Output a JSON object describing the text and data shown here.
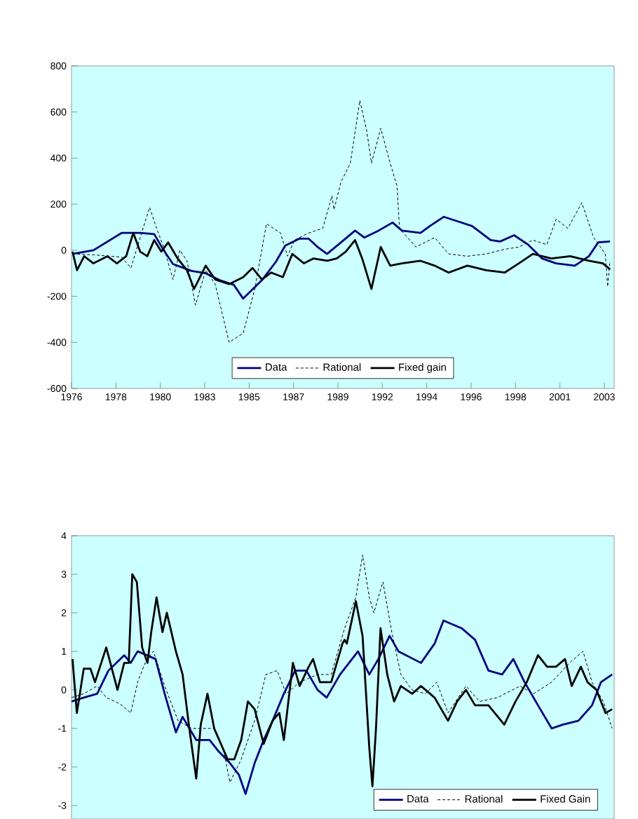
{
  "chart_data": [
    {
      "type": "line",
      "xlim": [
        1976,
        2003.5
      ],
      "ylim": [
        -600,
        800
      ],
      "yticks": [
        -600,
        -400,
        -200,
        0,
        200,
        400,
        600,
        800
      ],
      "xticks": [
        {
          "value": 1976,
          "label": "1976"
        },
        {
          "value": 1978.25,
          "label": "1978"
        },
        {
          "value": 1980.5,
          "label": "1980"
        },
        {
          "value": 1982.75,
          "label": "1983"
        },
        {
          "value": 1985,
          "label": "1985"
        },
        {
          "value": 1987.25,
          "label": "1987"
        },
        {
          "value": 1989.5,
          "label": "1989"
        },
        {
          "value": 1991.75,
          "label": "1992"
        },
        {
          "value": 1994,
          "label": "1994"
        },
        {
          "value": 1996.25,
          "label": "1996"
        },
        {
          "value": 1998.5,
          "label": "1998"
        },
        {
          "value": 2000.75,
          "label": "2001"
        },
        {
          "value": 2003,
          "label": "2003"
        }
      ],
      "legend": "bottom",
      "series": [
        {
          "name": "Data",
          "color": "#000080",
          "line_style": "solid",
          "x": [
            1976.05,
            1977.11,
            1978.54,
            1979.48,
            1980.19,
            1980.67,
            1981.14,
            1982.09,
            1982.8,
            1983.51,
            1984.22,
            1984.7,
            1985.65,
            1986.36,
            1986.83,
            1987.54,
            1988.02,
            1988.47,
            1988.95,
            1989.66,
            1990.37,
            1990.84,
            1991.56,
            1992.27,
            1992.74,
            1993.69,
            1994.16,
            1994.87,
            1995.58,
            1996.3,
            1997.24,
            1997.72,
            1998.43,
            1999.14,
            1999.85,
            2000.56,
            2001.51,
            2002.22,
            2002.69,
            2003.29
          ],
          "values": [
            -16,
            0,
            75,
            75,
            70,
            0,
            -60,
            -90,
            -100,
            -130,
            -150,
            -210,
            -130,
            -50,
            20,
            50,
            50,
            14,
            -16,
            34,
            85,
            55,
            85,
            120,
            85,
            75,
            105,
            145,
            125,
            105,
            44,
            38,
            65,
            24,
            -36,
            -57,
            -67,
            -26,
            34,
            38
          ]
        },
        {
          "name": "Rational",
          "color": "#000000",
          "line_style": "dashed",
          "x": [
            1976.05,
            1977.11,
            1978.54,
            1979.01,
            1979.48,
            1979.96,
            1980.31,
            1980.67,
            1981.14,
            1981.5,
            1981.85,
            1982.28,
            1982.8,
            1983.28,
            1983.99,
            1984.7,
            1985.29,
            1985.88,
            1986.59,
            1986.95,
            1987.3,
            1988.02,
            1988.73,
            1989.2,
            1989.3,
            1989.66,
            1990.13,
            1990.61,
            1990.96,
            1991.2,
            1991.67,
            1992.15,
            1992.5,
            1992.62,
            1993.45,
            1994.4,
            1995.11,
            1996.06,
            1997.01,
            1997.95,
            1998.67,
            1999.38,
            2000.09,
            2000.56,
            2001.15,
            2001.86,
            2002.46,
            2003.05,
            2003.17,
            2003.29
          ],
          "values": [
            -16,
            -20,
            -30,
            -77,
            55,
            186,
            95,
            14,
            -127,
            0,
            -46,
            -238,
            -87,
            -147,
            -400,
            -360,
            -168,
            115,
            75,
            -26,
            44,
            75,
            95,
            236,
            176,
            297,
            378,
            650,
            519,
            378,
            529,
            378,
            277,
            95,
            14,
            55,
            -16,
            -26,
            -16,
            4,
            14,
            44,
            24,
            135,
            95,
            206,
            55,
            -16,
            -158,
            -46
          ]
        },
        {
          "name": "Fixed gain",
          "color": "#000000",
          "line_style": "solid",
          "x": [
            1976.05,
            1976.28,
            1976.64,
            1977.11,
            1977.82,
            1978.3,
            1978.77,
            1979.13,
            1979.48,
            1979.84,
            1980.19,
            1980.55,
            1980.9,
            1981.38,
            1981.85,
            1982.21,
            1982.8,
            1983.28,
            1983.99,
            1984.7,
            1985.17,
            1985.65,
            1986.12,
            1986.71,
            1987.19,
            1987.78,
            1988.25,
            1988.96,
            1989.44,
            1989.9,
            1990.37,
            1990.73,
            1991.2,
            1991.67,
            1992.15,
            1992.74,
            1993.69,
            1994.4,
            1995.11,
            1996.06,
            1997.01,
            1997.95,
            1998.67,
            1999.38,
            2000.32,
            2001.27,
            2002.22,
            2002.93,
            2003.29
          ],
          "values": [
            -6,
            -87,
            -26,
            -57,
            -26,
            -57,
            -26,
            75,
            -6,
            -26,
            44,
            -6,
            34,
            -36,
            -87,
            -168,
            -67,
            -127,
            -147,
            -117,
            -77,
            -127,
            -97,
            -117,
            -16,
            -57,
            -36,
            -46,
            -36,
            -6,
            44,
            -36,
            -168,
            14,
            -67,
            -57,
            -46,
            -67,
            -97,
            -67,
            -87,
            -97,
            -57,
            -16,
            -36,
            -26,
            -46,
            -57,
            -83
          ]
        }
      ]
    },
    {
      "type": "line",
      "xlim": [
        1976,
        2003.5
      ],
      "ylim": [
        -3.35,
        4
      ],
      "yticks": [
        -3,
        -2,
        -1,
        0,
        1,
        2,
        3,
        4
      ],
      "tick_labels": "y",
      "legend": "bottom right",
      "series": [
        {
          "name": "Data",
          "color": "#000080",
          "line_style": "solid",
          "x": [
            1976.0,
            1976.62,
            1977.3,
            1977.87,
            1978.67,
            1979.0,
            1979.35,
            1979.81,
            1980.26,
            1980.72,
            1981.29,
            1981.63,
            1982.32,
            1983.0,
            1983.46,
            1984.03,
            1984.48,
            1984.82,
            1985.28,
            1985.74,
            1986.19,
            1986.76,
            1987.33,
            1987.9,
            1988.47,
            1988.93,
            1989.61,
            1990.52,
            1991.09,
            1991.55,
            1992.12,
            1992.57,
            1993.71,
            1994.4,
            1994.85,
            1995.77,
            1996.45,
            1997.13,
            1997.82,
            1998.39,
            1998.96,
            1999.64,
            2000.33,
            2000.9,
            2001.69,
            2002.38,
            2002.83,
            2003.4
          ],
          "values": [
            -0.3,
            -0.2,
            -0.1,
            0.5,
            0.9,
            0.7,
            1.0,
            0.9,
            0.8,
            -0.1,
            -1.1,
            -0.7,
            -1.3,
            -1.3,
            -1.6,
            -1.9,
            -2.2,
            -2.7,
            -1.9,
            -1.3,
            -0.8,
            -0.1,
            0.5,
            0.5,
            0.0,
            -0.2,
            0.4,
            1.0,
            0.4,
            0.8,
            1.4,
            1.0,
            0.7,
            1.2,
            1.8,
            1.6,
            1.3,
            0.5,
            0.4,
            0.8,
            0.2,
            -0.4,
            -1.0,
            -0.9,
            -0.8,
            -0.4,
            0.2,
            0.4
          ]
        },
        {
          "name": "Rational",
          "color": "#000000",
          "line_style": "dashed",
          "x": [
            1976.0,
            1976.62,
            1977.3,
            1977.76,
            1978.21,
            1978.55,
            1979.0,
            1979.35,
            1979.81,
            1980.15,
            1980.72,
            1981.4,
            1982.09,
            1983.23,
            1983.68,
            1984.03,
            1984.6,
            1985.28,
            1985.85,
            1986.42,
            1986.88,
            1987.56,
            1988.47,
            1989.16,
            1989.84,
            1990.41,
            1990.75,
            1991.09,
            1991.32,
            1991.78,
            1992.23,
            1992.69,
            1993.26,
            1993.94,
            1994.51,
            1995.08,
            1995.99,
            1996.68,
            1997.59,
            1998.73,
            1999.41,
            2000.33,
            2001.24,
            2001.92,
            2002.38,
            2002.95,
            2003.4
          ],
          "values": [
            -0.2,
            -0.1,
            0.1,
            -0.2,
            -0.3,
            -0.4,
            -0.6,
            0.2,
            0.8,
            1.0,
            0.1,
            -0.8,
            -1.0,
            -1.0,
            -1.5,
            -2.4,
            -1.8,
            -0.8,
            0.4,
            0.5,
            -0.1,
            0.2,
            0.4,
            0.4,
            1.6,
            2.4,
            3.5,
            2.4,
            2.0,
            2.8,
            1.5,
            0.4,
            0.0,
            -0.1,
            0.2,
            -0.6,
            0.1,
            -0.3,
            -0.2,
            0.1,
            -0.1,
            0.2,
            0.7,
            1.0,
            0.2,
            -0.3,
            -1.0
          ]
        },
        {
          "name": "Fixed Gain",
          "color": "#000000",
          "line_style": "solid",
          "x": [
            1976.05,
            1976.27,
            1976.62,
            1976.96,
            1977.19,
            1977.76,
            1978.33,
            1978.67,
            1978.9,
            1979.08,
            1979.31,
            1979.58,
            1979.85,
            1980.04,
            1980.31,
            1980.61,
            1980.83,
            1981.29,
            1981.63,
            1981.97,
            1982.32,
            1982.55,
            1982.89,
            1983.23,
            1983.91,
            1984.25,
            1984.6,
            1984.94,
            1985.28,
            1985.74,
            1986.19,
            1986.53,
            1986.76,
            1987.22,
            1987.56,
            1988.02,
            1988.24,
            1988.59,
            1989.16,
            1989.73,
            1989.84,
            1989.95,
            1990.41,
            1990.75,
            1991.09,
            1991.25,
            1991.43,
            1991.66,
            1992.0,
            1992.35,
            1992.69,
            1993.26,
            1993.71,
            1994.4,
            1995.08,
            1995.54,
            1995.99,
            1996.45,
            1997.13,
            1997.93,
            1998.5,
            1999.07,
            1999.64,
            2000.1,
            2000.55,
            2001.01,
            2001.35,
            2001.81,
            2002.15,
            2002.6,
            2003.06,
            2003.4
          ],
          "values": [
            0.8,
            -0.6,
            0.55,
            0.55,
            0.2,
            1.1,
            0.0,
            0.7,
            0.7,
            3.0,
            2.8,
            1.1,
            0.7,
            1.5,
            2.4,
            1.5,
            2.0,
            1.0,
            0.4,
            -1.0,
            -2.3,
            -0.9,
            -0.1,
            -1.0,
            -1.8,
            -1.8,
            -1.3,
            -0.3,
            -0.5,
            -1.4,
            -0.8,
            -0.6,
            -1.3,
            0.7,
            0.1,
            0.6,
            0.8,
            0.2,
            0.2,
            1.2,
            1.3,
            1.2,
            2.3,
            1.4,
            -1.5,
            -2.5,
            -1.0,
            1.6,
            0.4,
            -0.3,
            0.1,
            -0.1,
            0.1,
            -0.2,
            -0.8,
            -0.3,
            0.0,
            -0.4,
            -0.4,
            -0.9,
            -0.3,
            0.2,
            0.9,
            0.6,
            0.6,
            0.8,
            0.1,
            0.6,
            0.2,
            0.0,
            -0.6,
            -0.5
          ]
        }
      ]
    }
  ]
}
